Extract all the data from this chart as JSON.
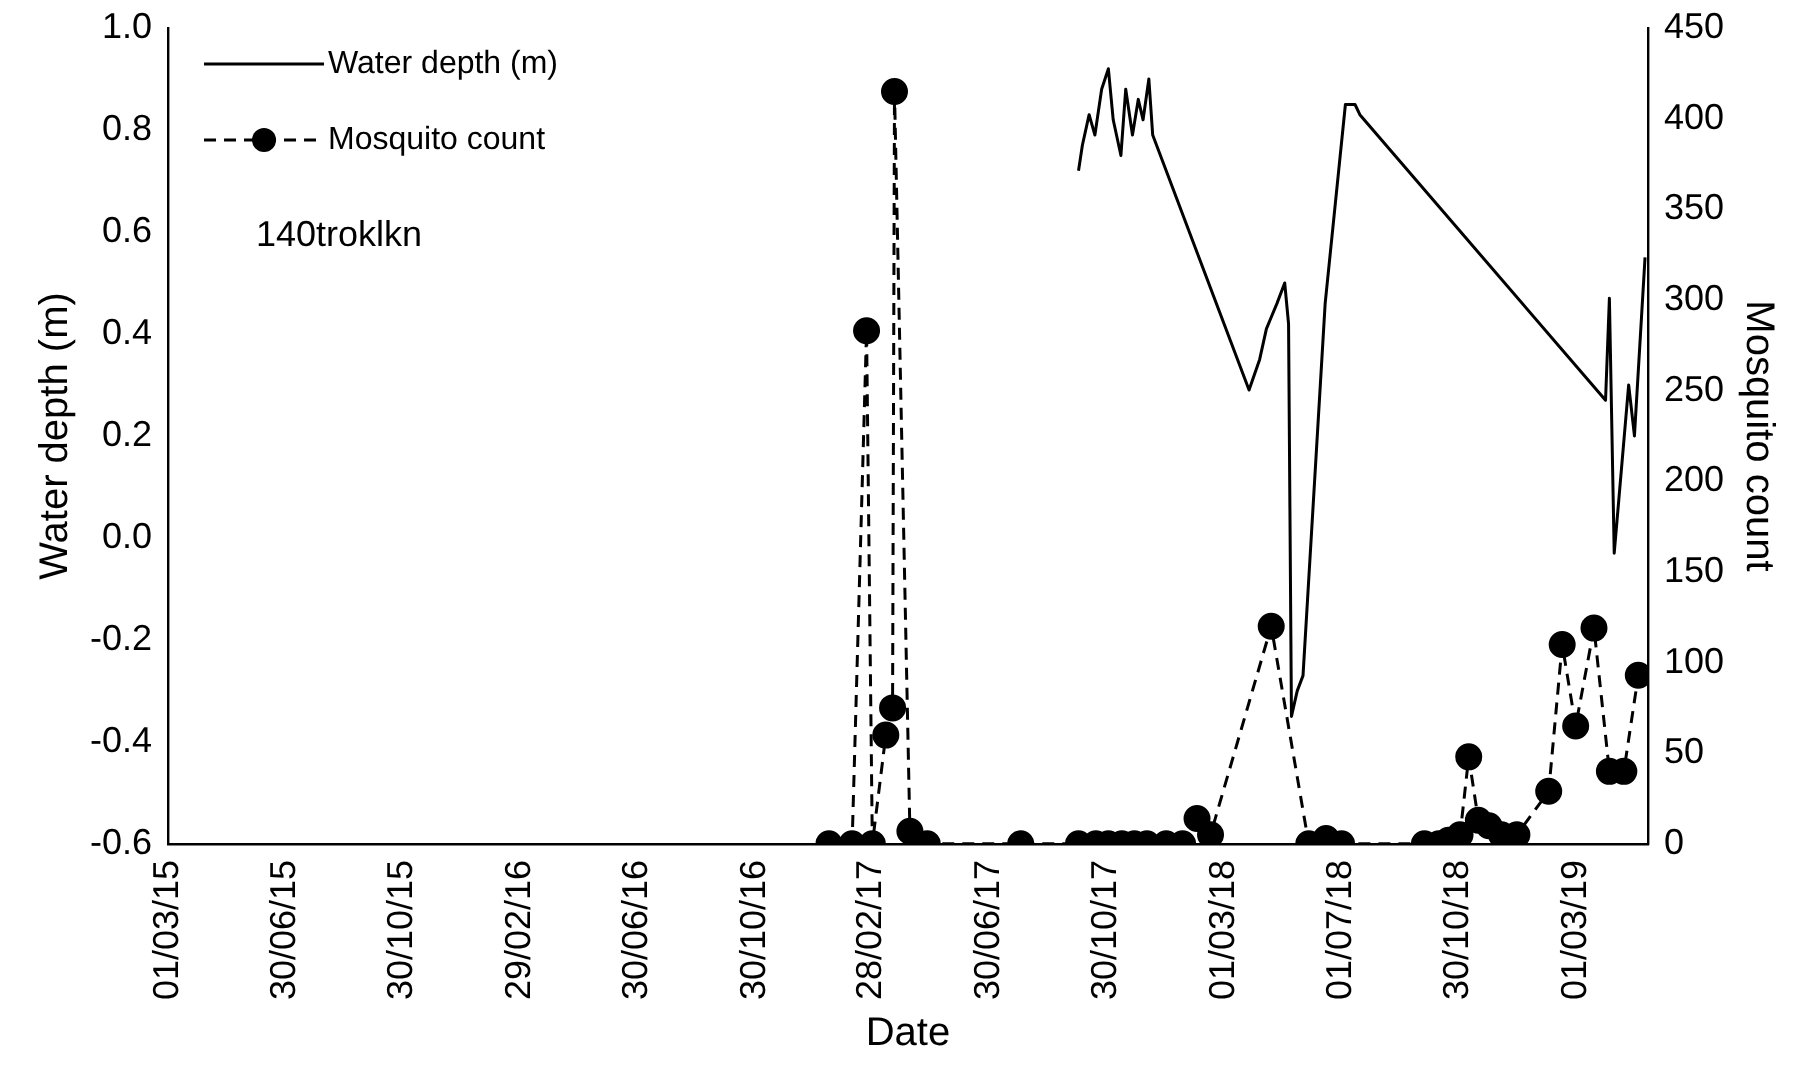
{
  "chart_data": {
    "type": "line",
    "xlabel": "Date",
    "ylabel": "Water depth (m)",
    "y2label": "Mosquito count",
    "legend": "top left",
    "annotations": [
      "140troklkn"
    ],
    "xlim": [
      "2015-03-01",
      "2019-05-15"
    ],
    "xticks": [
      {
        "value": "2015-03-01",
        "label": "01/03/15"
      },
      {
        "value": "2015-06-30",
        "label": "30/06/15"
      },
      {
        "value": "2015-10-30",
        "label": "30/10/15"
      },
      {
        "value": "2016-02-29",
        "label": "29/02/16"
      },
      {
        "value": "2016-06-30",
        "label": "30/06/16"
      },
      {
        "value": "2016-10-30",
        "label": "30/10/16"
      },
      {
        "value": "2017-02-28",
        "label": "28/02/17"
      },
      {
        "value": "2017-06-30",
        "label": "30/06/17"
      },
      {
        "value": "2017-10-30",
        "label": "30/10/17"
      },
      {
        "value": "2018-03-01",
        "label": "01/03/18"
      },
      {
        "value": "2018-07-01",
        "label": "01/07/18"
      },
      {
        "value": "2018-10-30",
        "label": "30/10/18"
      },
      {
        "value": "2019-03-01",
        "label": "01/03/19"
      }
    ],
    "ylim": [
      -0.6,
      1.0
    ],
    "yticks": [
      -0.6,
      -0.4,
      -0.2,
      {
        "value": 0,
        "label": "0.0"
      },
      0.2,
      0.4,
      0.6,
      0.8,
      {
        "value": 1,
        "label": "1.0"
      }
    ],
    "y2lim": [
      0,
      450
    ],
    "y2ticks": [
      0,
      50,
      100,
      150,
      200,
      250,
      300,
      350,
      400,
      450
    ],
    "series": [
      {
        "name": "Water depth (m)",
        "color": "#000000",
        "line_style": "solid",
        "marker": "none",
        "x": [
          "2017-10-01",
          "2017-10-05",
          "2017-10-12",
          "2017-10-18",
          "2017-10-25",
          "2017-11-01",
          "2017-11-06",
          "2017-11-14",
          "2017-11-19",
          "2017-11-26",
          "2017-12-02",
          "2017-12-07",
          "2017-12-13",
          "2017-12-17",
          "2018-03-27",
          "2018-04-07",
          "2018-04-14",
          "2018-04-25",
          "2018-05-03",
          "2018-05-07",
          "2018-05-10",
          "2018-05-16",
          "2018-05-22",
          "2018-06-14",
          "2018-07-05",
          "2018-07-15",
          "2018-07-20",
          "2019-04-01",
          "2019-04-05",
          "2019-04-10",
          "2019-04-25",
          "2019-05-01",
          "2019-05-12"
        ],
        "values": [
          0.72,
          0.77,
          0.83,
          0.79,
          0.88,
          0.92,
          0.82,
          0.75,
          0.88,
          0.79,
          0.86,
          0.82,
          0.9,
          0.79,
          0.29,
          0.35,
          0.41,
          0.46,
          0.5,
          0.42,
          -0.35,
          -0.3,
          -0.27,
          0.46,
          0.85,
          0.85,
          0.83,
          0.27,
          0.47,
          -0.03,
          0.3,
          0.2,
          0.55
        ]
      },
      {
        "name": "Mosquito count",
        "color": "#000000",
        "axis": "y2",
        "line_style": "dashed",
        "marker": "circle",
        "x": [
          "2017-01-15",
          "2017-02-08",
          "2017-02-23",
          "2017-03-01",
          "2017-03-15",
          "2017-03-22",
          "2017-03-24",
          "2017-04-09",
          "2017-04-27",
          "2017-08-02",
          "2017-10-01",
          "2017-10-19",
          "2017-11-01",
          "2017-11-15",
          "2017-11-28",
          "2017-12-11",
          "2017-12-31",
          "2018-01-17",
          "2018-02-01",
          "2018-02-15",
          "2018-04-19",
          "2018-05-28",
          "2018-06-15",
          "2018-07-01",
          "2018-09-25",
          "2018-10-10",
          "2018-10-20",
          "2018-11-01",
          "2018-11-10",
          "2018-11-20",
          "2018-12-01",
          "2018-12-14",
          "2018-12-30",
          "2019-02-01",
          "2019-02-15",
          "2019-03-01",
          "2019-03-20",
          "2019-04-05",
          "2019-04-20",
          "2019-05-05"
        ],
        "values": [
          0,
          0,
          283,
          0,
          60,
          75,
          415,
          7,
          0,
          0,
          0,
          0,
          0,
          0,
          0,
          0,
          0,
          0,
          14,
          5,
          120,
          0,
          3,
          0,
          0,
          0,
          2,
          5,
          48,
          13,
          10,
          5,
          5,
          29,
          110,
          65,
          119,
          40,
          40,
          93
        ]
      }
    ]
  }
}
